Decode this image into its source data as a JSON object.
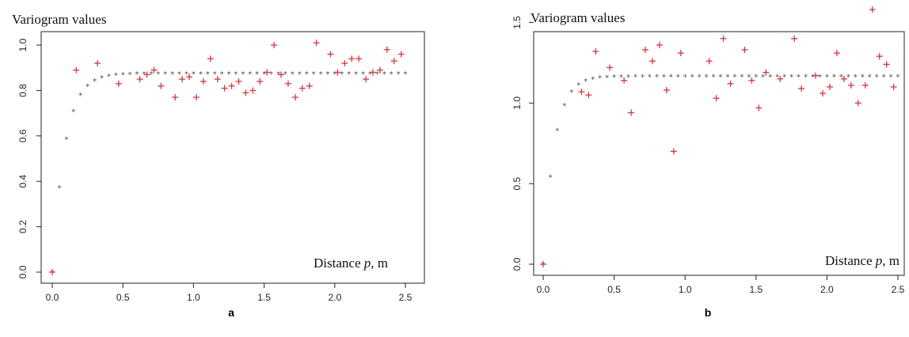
{
  "chart_data": [
    {
      "panel_label": "a",
      "type": "scatter",
      "title": "Variogram values",
      "xlabel_prefix": "Distance ",
      "xlabel_var": "p",
      "xlabel_suffix": ", m",
      "xlim": [
        0,
        2.5
      ],
      "ylim": [
        0,
        1.0
      ],
      "xticks": [
        0.0,
        0.5,
        1.0,
        1.5,
        2.0,
        2.5
      ],
      "yticks": [
        0.0,
        0.2,
        0.4,
        0.6,
        0.8,
        1.0
      ],
      "grid": false,
      "colors": {
        "empirical": "#d9343e",
        "model": "#4a4a4a"
      },
      "series": [
        {
          "marker": "+",
          "x": [
            0.0,
            0.17,
            0.32,
            0.47,
            0.62,
            0.67,
            0.72,
            0.77,
            0.87,
            0.92,
            0.97,
            1.02,
            1.07,
            1.12,
            1.17,
            1.22,
            1.27,
            1.32,
            1.37,
            1.42,
            1.47,
            1.52,
            1.57,
            1.62,
            1.67,
            1.72,
            1.77,
            1.82,
            1.87,
            1.97,
            2.02,
            2.07,
            2.12,
            2.17,
            2.22,
            2.27,
            2.32,
            2.37,
            2.42,
            2.47
          ],
          "y": [
            0.0,
            0.89,
            0.92,
            0.83,
            0.85,
            0.87,
            0.89,
            0.82,
            0.77,
            0.85,
            0.86,
            0.77,
            0.84,
            0.94,
            0.85,
            0.81,
            0.82,
            0.84,
            0.79,
            0.8,
            0.84,
            0.88,
            1.0,
            0.87,
            0.83,
            0.77,
            0.81,
            0.82,
            1.01,
            0.96,
            0.88,
            0.92,
            0.94,
            0.94,
            0.85,
            0.88,
            0.89,
            0.98,
            0.93,
            0.96
          ]
        },
        {
          "marker": "*",
          "model": {
            "nugget": 0.0,
            "sill": 0.875,
            "range": 0.09
          },
          "x_start": 0.0,
          "x_end": 2.5,
          "x_step": 0.05
        }
      ]
    },
    {
      "panel_label": "b",
      "type": "scatter",
      "title": "Variogram values",
      "xlabel_prefix": "Distance ",
      "xlabel_var": "p",
      "xlabel_suffix": ", m",
      "xlim": [
        0,
        2.5
      ],
      "ylim": [
        0,
        1.6
      ],
      "xticks": [
        0.0,
        0.5,
        1.0,
        1.5,
        2.0,
        2.5
      ],
      "yticks": [
        0.0,
        0.5,
        1.0,
        1.5
      ],
      "grid": false,
      "colors": {
        "empirical": "#d9343e",
        "model": "#4a4a4a"
      },
      "series": [
        {
          "marker": "+",
          "x": [
            0.0,
            0.27,
            0.32,
            0.37,
            0.47,
            0.57,
            0.62,
            0.72,
            0.77,
            0.82,
            0.87,
            0.92,
            0.97,
            1.17,
            1.22,
            1.27,
            1.32,
            1.42,
            1.47,
            1.52,
            1.57,
            1.67,
            1.77,
            1.82,
            1.92,
            1.97,
            2.02,
            2.07,
            2.12,
            2.17,
            2.22,
            2.27,
            2.32,
            2.37,
            2.42,
            2.47
          ],
          "y": [
            0.0,
            1.07,
            1.05,
            1.32,
            1.22,
            1.14,
            0.94,
            1.33,
            1.26,
            1.36,
            1.08,
            0.7,
            1.31,
            1.26,
            1.03,
            1.4,
            1.12,
            1.33,
            1.14,
            0.97,
            1.19,
            1.15,
            1.4,
            1.09,
            1.17,
            1.06,
            1.1,
            1.31,
            1.15,
            1.11,
            1.0,
            1.11,
            1.58,
            1.29,
            1.24,
            1.1
          ]
        },
        {
          "marker": "*",
          "model": {
            "nugget": 0.0,
            "sill": 1.165,
            "range": 0.08
          },
          "x_start": 0.0,
          "x_end": 2.5,
          "x_step": 0.05
        }
      ]
    }
  ]
}
